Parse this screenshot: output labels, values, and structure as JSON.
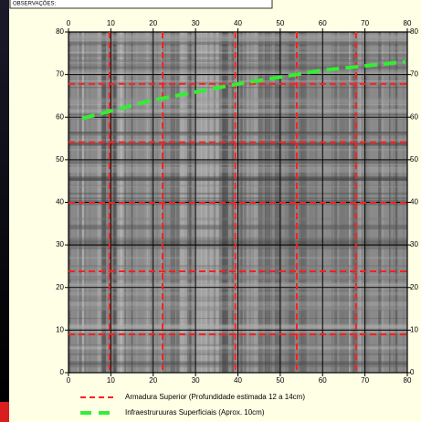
{
  "header": {
    "label": "OBSERVAÇÕES:"
  },
  "chart_data": {
    "type": "gpr-map",
    "xlim": [
      0,
      80
    ],
    "ylim": [
      0,
      80
    ],
    "xticks": [
      0,
      10,
      20,
      30,
      40,
      50,
      60,
      70,
      80
    ],
    "yticks": [
      0,
      10,
      20,
      30,
      40,
      50,
      60,
      70,
      80
    ],
    "grid": true,
    "series": [
      {
        "name": "Armadura Superior (Profundidade estimada 12 a 14cm)",
        "color": "#ff2020",
        "x_lines": [
          9.7,
          22.2,
          39.4,
          53.9,
          67.9
        ],
        "y_lines": [
          67.8,
          54.1,
          39.9,
          23.8,
          9
        ]
      },
      {
        "name": "Infraestruruuras Superficiais (Aprox. 10cm)",
        "color": "#33ee33",
        "x": [
          3.2,
          20,
          40,
          60,
          79.5
        ],
        "y": [
          59.7,
          64,
          67.8,
          71,
          73
        ]
      }
    ]
  }
}
